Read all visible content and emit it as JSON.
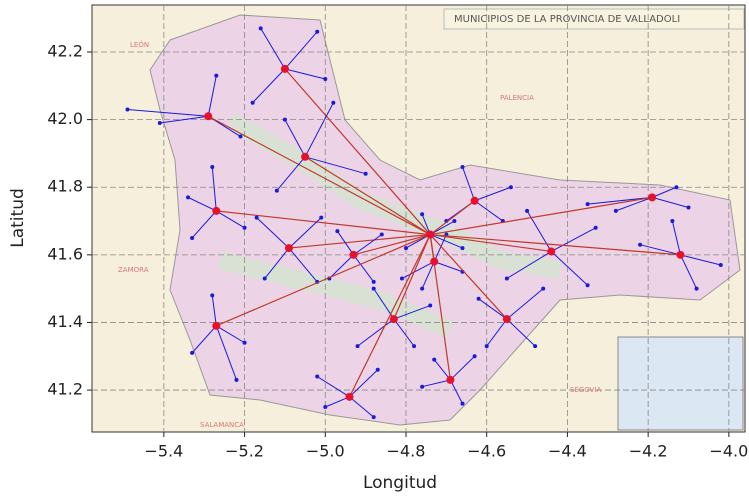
{
  "chart_data": {
    "type": "network",
    "map_title": "MUNICIPIOS DE LA PROVINCIA DE VALLADOLI",
    "xlabel": "Longitud",
    "ylabel": "Latitud",
    "xlim": [
      -5.578,
      -3.96
    ],
    "ylim": [
      41.076,
      42.339
    ],
    "xticks": [
      {
        "value": -5.4,
        "label": "−5.4"
      },
      {
        "value": -5.2,
        "label": "−5.2"
      },
      {
        "value": -5.0,
        "label": "−5.0"
      },
      {
        "value": -4.8,
        "label": "−4.8"
      },
      {
        "value": -4.6,
        "label": "−4.6"
      },
      {
        "value": -4.4,
        "label": "−4.4"
      },
      {
        "value": -4.2,
        "label": "−4.2"
      },
      {
        "value": -4.0,
        "label": "−4.0"
      }
    ],
    "yticks": [
      41.2,
      41.4,
      41.6,
      41.8,
      {
        "value": 42.0,
        "label": "42.0"
      },
      42.2
    ],
    "grid": true,
    "region_labels": [
      "LEÓN",
      "PALENCIA",
      "ZAMORA",
      "SEGOVIA",
      "SALAMANCA"
    ],
    "hub_color": "#e8102a",
    "trunk_color": "#c0392b",
    "spoke_color": "#1a1adb",
    "hubs": {
      "x": [
        -4.74,
        -5.1,
        -5.29,
        -5.05,
        -5.27,
        -5.09,
        -4.93,
        -4.73,
        -4.63,
        -4.44,
        -4.19,
        -4.12,
        -4.55,
        -4.83,
        -5.27,
        -4.94,
        -4.69
      ],
      "y": [
        41.66,
        42.15,
        42.01,
        41.89,
        41.73,
        41.62,
        41.6,
        41.58,
        41.76,
        41.61,
        41.77,
        41.6,
        41.41,
        41.41,
        41.39,
        41.18,
        41.23
      ]
    },
    "spokes": [
      {
        "x": [
          -4.76,
          -4.68,
          -4.8,
          -4.66
        ],
        "y": [
          41.72,
          41.7,
          41.62,
          41.62
        ]
      },
      {
        "x": [
          -5.16,
          -5.02,
          -5.0,
          -5.18
        ],
        "y": [
          42.27,
          42.26,
          42.12,
          42.05
        ]
      },
      {
        "x": [
          -5.49,
          -5.41,
          -5.27,
          -5.21
        ],
        "y": [
          42.03,
          41.99,
          42.13,
          41.95
        ]
      },
      {
        "x": [
          -4.98,
          -4.9,
          -5.12,
          -5.1
        ],
        "y": [
          42.05,
          41.84,
          41.79,
          42.0
        ]
      },
      {
        "x": [
          -5.28,
          -5.33,
          -5.2,
          -5.34
        ],
        "y": [
          41.86,
          41.65,
          41.68,
          41.77
        ]
      },
      {
        "x": [
          -5.17,
          -5.01,
          -5.02,
          -5.15
        ],
        "y": [
          41.71,
          41.71,
          41.52,
          41.53
        ]
      },
      {
        "x": [
          -4.97,
          -4.86,
          -4.88,
          -4.99
        ],
        "y": [
          41.67,
          41.66,
          41.52,
          41.53
        ]
      },
      {
        "x": [
          -4.76,
          -4.66,
          -4.81,
          -4.7
        ],
        "y": [
          41.5,
          41.55,
          41.53,
          41.66
        ]
      },
      {
        "x": [
          -4.66,
          -4.54,
          -4.56,
          -4.7
        ],
        "y": [
          41.86,
          41.8,
          41.7,
          41.7
        ]
      },
      {
        "x": [
          -4.5,
          -4.33,
          -4.35,
          -4.55
        ],
        "y": [
          41.73,
          41.68,
          41.51,
          41.53
        ]
      },
      {
        "x": [
          -4.28,
          -4.1,
          -4.13,
          -4.35
        ],
        "y": [
          41.73,
          41.74,
          41.8,
          41.75
        ]
      },
      {
        "x": [
          -4.14,
          -4.02,
          -4.08,
          -4.22
        ],
        "y": [
          41.7,
          41.57,
          41.5,
          41.63
        ]
      },
      {
        "x": [
          -4.62,
          -4.46,
          -4.48,
          -4.6
        ],
        "y": [
          41.47,
          41.5,
          41.33,
          41.33
        ]
      },
      {
        "x": [
          -4.88,
          -4.74,
          -4.78,
          -4.92
        ],
        "y": [
          41.5,
          41.45,
          41.33,
          41.33
        ]
      },
      {
        "x": [
          -5.28,
          -5.2,
          -5.22,
          -5.33
        ],
        "y": [
          41.48,
          41.34,
          41.23,
          41.31
        ]
      },
      {
        "x": [
          -5.02,
          -4.87,
          -4.88,
          -5.0
        ],
        "y": [
          41.24,
          41.26,
          41.12,
          41.15
        ]
      },
      {
        "x": [
          -4.73,
          -4.63,
          -4.66,
          -4.76
        ],
        "y": [
          41.29,
          41.3,
          41.16,
          41.21
        ]
      }
    ]
  }
}
